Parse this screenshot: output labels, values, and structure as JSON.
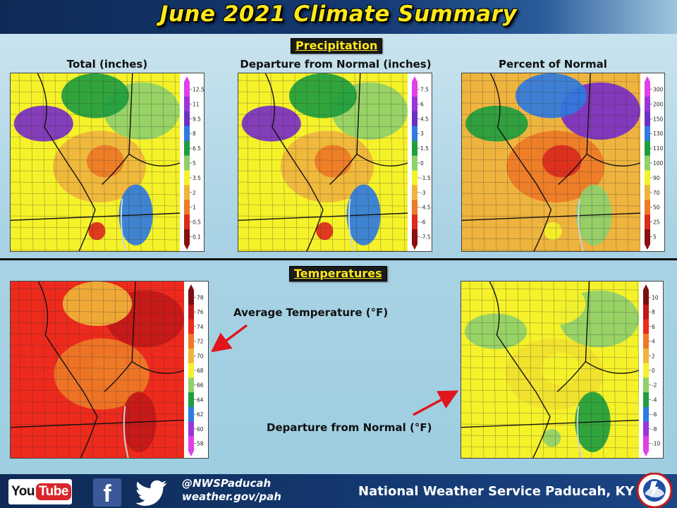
{
  "header": {
    "title": "June 2021 Climate Summary"
  },
  "sections": {
    "precipitation": "Precipitation",
    "temperatures": "Temperatures"
  },
  "colors": {
    "accent": "#ffe81a",
    "header_bg": "#0f2a55",
    "page_bg": "#a9d3e4"
  },
  "panels": [
    {
      "title": "Total (inches)",
      "legend_ticks": [
        "12.5",
        "11",
        "9.5",
        "8",
        "6.5",
        "5",
        "3.5",
        "2",
        "1",
        "0.5",
        "0.1"
      ],
      "legend_colors": [
        "#e23fe6",
        "#9b35d8",
        "#6d2fc3",
        "#2f7be0",
        "#1f9e3e",
        "#8fd06a",
        "#f5f22a",
        "#f0b43a",
        "#ee7a26",
        "#dc2a1c",
        "#8a0f0f"
      ],
      "zones": [
        "#f5f22a",
        "#efb43e",
        "#8fd06a",
        "#1f9e3e",
        "#7a2fc6",
        "#2f7be0",
        "#ee7a26",
        "#dc2a1c"
      ]
    },
    {
      "title": "Departure from Normal (inches)",
      "legend_ticks": [
        "7.5",
        "6",
        "4.5",
        "3",
        "1.5",
        "0",
        "-1.5",
        "-3",
        "-4.5",
        "-6",
        "-7.5"
      ],
      "legend_colors": [
        "#e23fe6",
        "#9b35d8",
        "#6d2fc3",
        "#2f7be0",
        "#1f9e3e",
        "#8fd06a",
        "#f5f22a",
        "#f0b43a",
        "#ee7a26",
        "#dc2a1c",
        "#8a0f0f"
      ],
      "zones": [
        "#f5f22a",
        "#efb43e",
        "#8fd06a",
        "#1f9e3e",
        "#7a2fc6",
        "#2f7be0",
        "#ee7a26",
        "#dc2a1c"
      ]
    },
    {
      "title": "Percent of Normal",
      "legend_ticks": [
        "300",
        "200",
        "150",
        "130",
        "110",
        "100",
        "90",
        "70",
        "50",
        "25",
        "5"
      ],
      "legend_colors": [
        "#e23fe6",
        "#9b35d8",
        "#6d2fc3",
        "#2f7be0",
        "#1f9e3e",
        "#8fd06a",
        "#f5f22a",
        "#f0b43a",
        "#ee7a26",
        "#dc2a1c",
        "#8a0f0f"
      ],
      "zones": [
        "#efb43e",
        "#ee7a26",
        "#7a2fc6",
        "#2f7be0",
        "#1f9e3e",
        "#8fd06a",
        "#dc2a1c",
        "#f5f22a"
      ]
    },
    {
      "title": "Average Temperature (°F)",
      "legend_ticks": [
        "78",
        "76",
        "74",
        "72",
        "70",
        "68",
        "66",
        "64",
        "62",
        "60",
        "58"
      ],
      "legend_colors": [
        "#7a1010",
        "#c21818",
        "#ee2a1c",
        "#ee7a26",
        "#f0b43a",
        "#f5f22a",
        "#8fd06a",
        "#1f9e3e",
        "#2f7be0",
        "#9b35d8",
        "#e23fe6"
      ],
      "zones": [
        "#ee2a1c",
        "#ee7a26",
        "#c21818",
        "#f0b43a",
        "#ee2a1c",
        "#c21818",
        "#ee7a26",
        "#ee2a1c"
      ]
    },
    {
      "title": "Departure from Normal (°F)",
      "legend_ticks": [
        "10",
        "8",
        "6",
        "4",
        "2",
        "0",
        "-2",
        "-4",
        "-6",
        "-8",
        "-10"
      ],
      "legend_colors": [
        "#7a1010",
        "#c21818",
        "#ee2a1c",
        "#ee7a26",
        "#f0b43a",
        "#f5f22a",
        "#8fd06a",
        "#1f9e3e",
        "#2f7be0",
        "#9b35d8",
        "#e23fe6"
      ],
      "zones": [
        "#f5f22a",
        "#f0e12e",
        "#8fd06a",
        "#f5f22a",
        "#8fd06a",
        "#1f9e3e",
        "#f5f22a",
        "#8fd06a"
      ]
    }
  ],
  "footer": {
    "youtube_you": "You",
    "youtube_tube": "Tube",
    "facebook_glyph": "f",
    "handle": "@NWSPaducah",
    "website": "weather.gov/pah",
    "office": "National Weather Service Paducah, KY",
    "icons": [
      "youtube-icon",
      "facebook-icon",
      "twitter-icon",
      "nws-logo-icon"
    ]
  }
}
